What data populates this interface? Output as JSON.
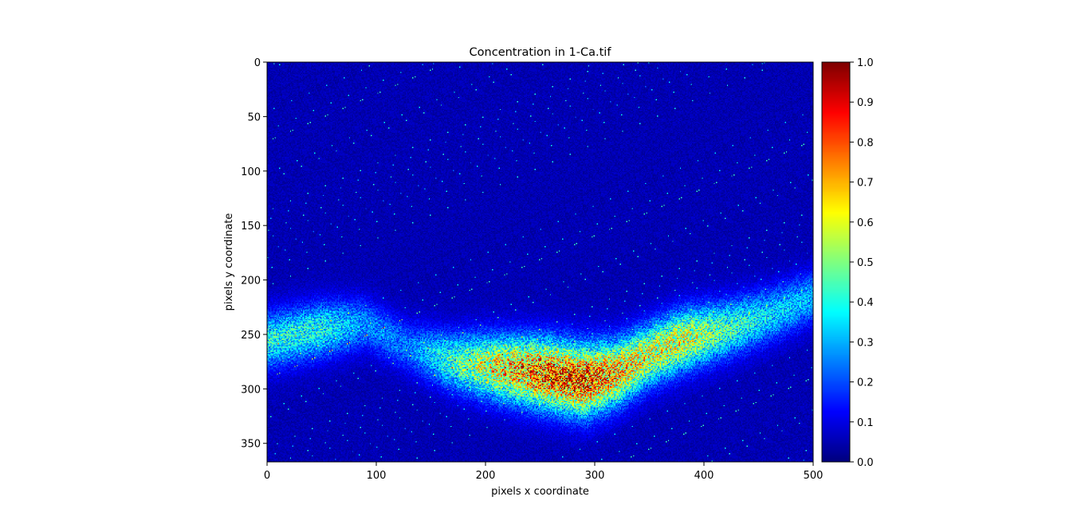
{
  "chart_data": {
    "type": "heatmap",
    "title": "Concentration in 1-Ca.tif",
    "xlabel": "pixels x coordinate",
    "ylabel": "pixels y coordinate",
    "xlim": [
      0,
      500
    ],
    "ylim": [
      367,
      0
    ],
    "image_shape": [
      367,
      500
    ],
    "y_axis_inverted": true,
    "colormap": "jet",
    "x_ticks": [
      0,
      100,
      200,
      300,
      400,
      500
    ],
    "x_tick_labels": [
      "0",
      "100",
      "200",
      "300",
      "400",
      "500"
    ],
    "y_ticks": [
      0,
      50,
      100,
      150,
      200,
      250,
      300,
      350
    ],
    "y_tick_labels": [
      "0",
      "50",
      "100",
      "150",
      "200",
      "250",
      "300",
      "350"
    ],
    "colorbar": {
      "range": [
        0.0,
        1.0
      ],
      "ticks": [
        0.0,
        0.1,
        0.2,
        0.3,
        0.4,
        0.5,
        0.6,
        0.7,
        0.8,
        0.9,
        1.0
      ],
      "tick_labels": [
        "0.0",
        "0.1",
        "0.2",
        "0.3",
        "0.4",
        "0.5",
        "0.6",
        "0.7",
        "0.8",
        "0.9",
        "1.0"
      ]
    },
    "background_value": 0.05,
    "band": {
      "description": "high-concentration band across lower half",
      "centerline": [
        [
          0,
          255
        ],
        [
          50,
          245
        ],
        [
          90,
          240
        ],
        [
          130,
          262
        ],
        [
          170,
          275
        ],
        [
          210,
          280
        ],
        [
          250,
          285
        ],
        [
          290,
          292
        ],
        [
          320,
          285
        ],
        [
          350,
          268
        ],
        [
          380,
          255
        ],
        [
          420,
          245
        ],
        [
          460,
          232
        ],
        [
          500,
          215
        ]
      ],
      "intensity": [
        [
          0,
          0.35
        ],
        [
          50,
          0.35
        ],
        [
          90,
          0.22
        ],
        [
          130,
          0.2
        ],
        [
          170,
          0.4
        ],
        [
          210,
          0.6
        ],
        [
          250,
          0.75
        ],
        [
          290,
          0.8
        ],
        [
          320,
          0.65
        ],
        [
          350,
          0.55
        ],
        [
          380,
          0.55
        ],
        [
          420,
          0.4
        ],
        [
          460,
          0.3
        ],
        [
          500,
          0.25
        ]
      ]
    }
  }
}
